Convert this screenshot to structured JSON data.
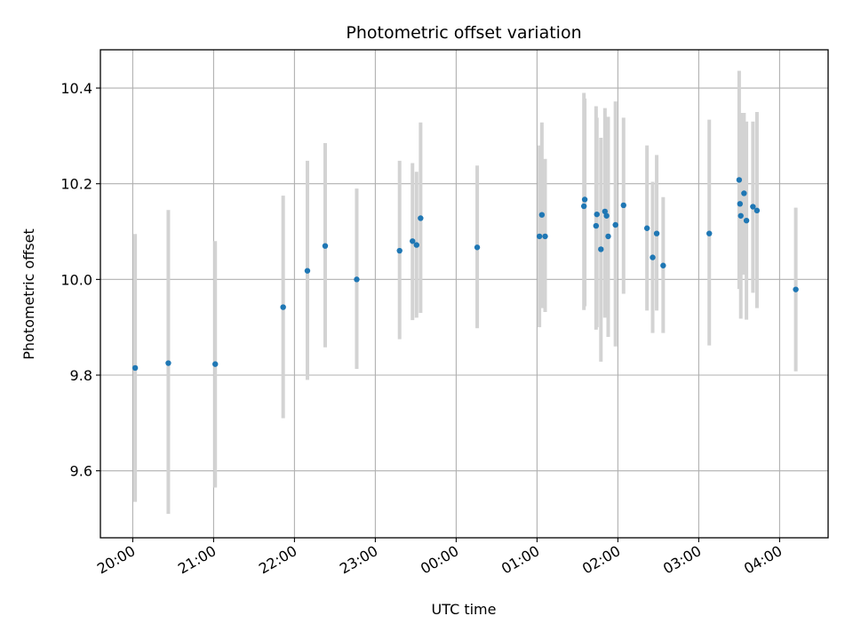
{
  "chart_data": {
    "type": "scatter",
    "title": "Photometric offset variation",
    "xlabel": "UTC time",
    "ylabel": "Photometric offset",
    "x_unit": "hours after 20:00 UTC",
    "xlim": [
      -0.4,
      8.6
    ],
    "ylim": [
      9.46,
      10.48
    ],
    "grid": true,
    "x_ticks": [
      {
        "value": 0,
        "label": "20:00"
      },
      {
        "value": 1,
        "label": "21:00"
      },
      {
        "value": 2,
        "label": "22:00"
      },
      {
        "value": 3,
        "label": "23:00"
      },
      {
        "value": 4,
        "label": "00:00"
      },
      {
        "value": 5,
        "label": "01:00"
      },
      {
        "value": 6,
        "label": "02:00"
      },
      {
        "value": 7,
        "label": "03:00"
      },
      {
        "value": 8,
        "label": "04:00"
      }
    ],
    "y_ticks": [
      {
        "value": 9.6,
        "label": "9.6"
      },
      {
        "value": 9.8,
        "label": "9.8"
      },
      {
        "value": 10.0,
        "label": "10.0"
      },
      {
        "value": 10.2,
        "label": "10.2"
      },
      {
        "value": 10.4,
        "label": "10.4"
      }
    ],
    "point_color": "#1f77b4",
    "errorbar_color": "#d3d3d3",
    "points": [
      {
        "x": 0.03,
        "y": 9.815,
        "lo": 9.535,
        "hi": 10.095
      },
      {
        "x": 0.44,
        "y": 9.825,
        "lo": 9.51,
        "hi": 10.145
      },
      {
        "x": 1.02,
        "y": 9.823,
        "lo": 9.565,
        "hi": 10.08
      },
      {
        "x": 1.86,
        "y": 9.942,
        "lo": 9.71,
        "hi": 10.175
      },
      {
        "x": 2.16,
        "y": 10.018,
        "lo": 9.79,
        "hi": 10.248
      },
      {
        "x": 2.38,
        "y": 10.07,
        "lo": 9.858,
        "hi": 10.285
      },
      {
        "x": 2.77,
        "y": 10.0,
        "lo": 9.813,
        "hi": 10.19
      },
      {
        "x": 3.3,
        "y": 10.06,
        "lo": 9.875,
        "hi": 10.248
      },
      {
        "x": 3.46,
        "y": 10.08,
        "lo": 9.915,
        "hi": 10.243
      },
      {
        "x": 3.51,
        "y": 10.072,
        "lo": 9.92,
        "hi": 10.225
      },
      {
        "x": 3.56,
        "y": 10.128,
        "lo": 9.93,
        "hi": 10.328
      },
      {
        "x": 4.26,
        "y": 10.067,
        "lo": 9.898,
        "hi": 10.238
      },
      {
        "x": 5.03,
        "y": 10.09,
        "lo": 9.9,
        "hi": 10.28
      },
      {
        "x": 5.06,
        "y": 10.135,
        "lo": 9.94,
        "hi": 10.328
      },
      {
        "x": 5.1,
        "y": 10.09,
        "lo": 9.932,
        "hi": 10.252
      },
      {
        "x": 5.58,
        "y": 10.153,
        "lo": 9.936,
        "hi": 10.39
      },
      {
        "x": 5.59,
        "y": 10.167,
        "lo": 9.944,
        "hi": 10.378
      },
      {
        "x": 5.73,
        "y": 10.112,
        "lo": 9.895,
        "hi": 10.362
      },
      {
        "x": 5.74,
        "y": 10.136,
        "lo": 9.9,
        "hi": 10.338
      },
      {
        "x": 5.79,
        "y": 10.063,
        "lo": 9.828,
        "hi": 10.296
      },
      {
        "x": 5.84,
        "y": 10.142,
        "lo": 9.92,
        "hi": 10.358
      },
      {
        "x": 5.86,
        "y": 10.133,
        "lo": 9.94,
        "hi": 10.3
      },
      {
        "x": 5.88,
        "y": 10.09,
        "lo": 9.88,
        "hi": 10.34
      },
      {
        "x": 5.97,
        "y": 10.114,
        "lo": 9.86,
        "hi": 10.372
      },
      {
        "x": 6.07,
        "y": 10.155,
        "lo": 9.97,
        "hi": 10.338
      },
      {
        "x": 6.36,
        "y": 10.107,
        "lo": 9.935,
        "hi": 10.28
      },
      {
        "x": 6.43,
        "y": 10.046,
        "lo": 9.888,
        "hi": 10.204
      },
      {
        "x": 6.48,
        "y": 10.096,
        "lo": 9.935,
        "hi": 10.26
      },
      {
        "x": 6.56,
        "y": 10.029,
        "lo": 9.888,
        "hi": 10.172
      },
      {
        "x": 7.13,
        "y": 10.096,
        "lo": 9.862,
        "hi": 10.334
      },
      {
        "x": 7.5,
        "y": 10.208,
        "lo": 9.98,
        "hi": 10.436
      },
      {
        "x": 7.51,
        "y": 10.158,
        "lo": 9.995,
        "hi": 10.32
      },
      {
        "x": 7.52,
        "y": 10.133,
        "lo": 9.918,
        "hi": 10.348
      },
      {
        "x": 7.56,
        "y": 10.18,
        "lo": 10.01,
        "hi": 10.348
      },
      {
        "x": 7.59,
        "y": 10.123,
        "lo": 9.916,
        "hi": 10.33
      },
      {
        "x": 7.67,
        "y": 10.152,
        "lo": 9.972,
        "hi": 10.33
      },
      {
        "x": 7.72,
        "y": 10.144,
        "lo": 9.94,
        "hi": 10.35
      },
      {
        "x": 8.2,
        "y": 9.979,
        "lo": 9.808,
        "hi": 10.15
      }
    ]
  }
}
